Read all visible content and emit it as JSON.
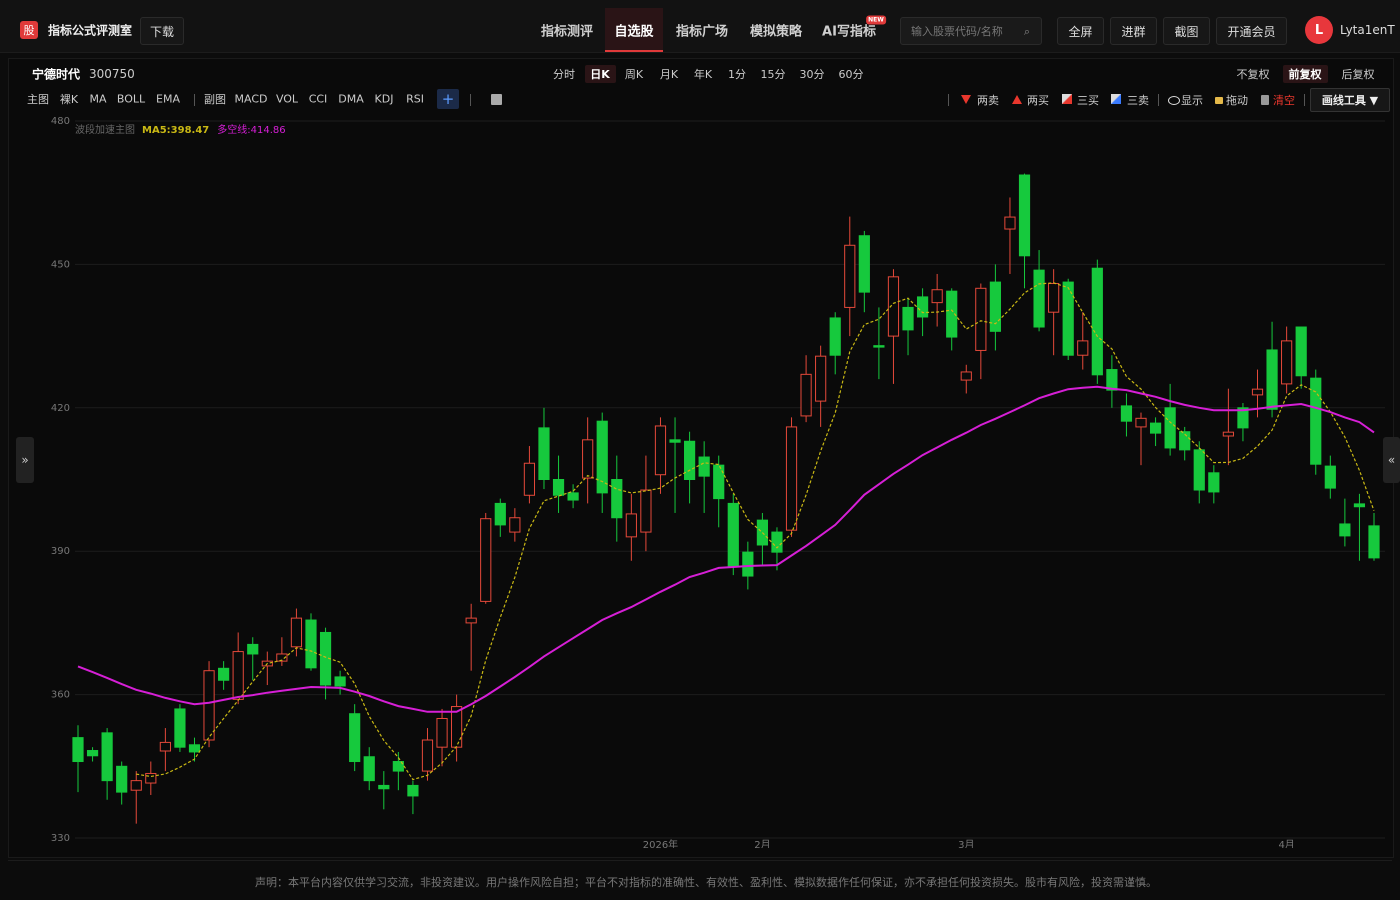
{
  "header": {
    "logo": "股",
    "title": "指标公式评测室",
    "download": "下载",
    "nav": [
      "指标测评",
      "自选股",
      "指标广场",
      "模拟策略",
      "AI写指标"
    ],
    "badge": "NEW",
    "search_placeholder": "输入股票代码/名称",
    "buttons": [
      "全屏",
      "进群",
      "截图",
      "开通会员"
    ],
    "avatar": "L",
    "user": "Lyta1enT"
  },
  "stock": {
    "name": "宁德时代",
    "code": "300750"
  },
  "periods": [
    "分时",
    "日K",
    "周K",
    "月K",
    "年K",
    "1分",
    "15分",
    "30分",
    "60分"
  ],
  "adjust": [
    "不复权",
    "前复权",
    "后复权"
  ],
  "toolbar": {
    "main_label": "主图",
    "main": [
      "裸K",
      "MA",
      "BOLL",
      "EMA"
    ],
    "sub_label": "副图",
    "sub": [
      "MACD",
      "VOL",
      "CCI",
      "DMA",
      "KDJ",
      "RSI"
    ],
    "add": "+"
  },
  "signals": [
    "两卖",
    "两买",
    "三买",
    "三卖"
  ],
  "tools": [
    "显示",
    "拖动",
    "清空"
  ],
  "draw_tool": "画线工具 ▼",
  "side_left": "»",
  "side_right": "«",
  "footer": "声明：本平台内容仅供学习交流，非投资建议。用户操作风险自担；平台不对指标的准确性、有效性、盈利性、模拟数据作任何保证，亦不承担任何投资损失。股市有风险，投资需谨慎。",
  "chart_data": {
    "type": "candlestick",
    "indicator_label": "波段加速主图",
    "categories": [
      null,
      null,
      null,
      null,
      null,
      null,
      null,
      null,
      null,
      null,
      null,
      null,
      null,
      null,
      null,
      null,
      null,
      null,
      null,
      null,
      null,
      null,
      null,
      null,
      null,
      null,
      null,
      null,
      null,
      null,
      null,
      null,
      null,
      null,
      null,
      null,
      null,
      null,
      null,
      null,
      "2026年",
      null,
      null,
      null,
      null,
      null,
      null,
      "2月",
      null,
      null,
      null,
      null,
      null,
      null,
      null,
      null,
      null,
      null,
      null,
      null,
      null,
      "3月",
      null,
      null,
      null,
      null,
      null,
      null,
      null,
      null,
      null,
      null,
      null,
      null,
      null,
      null,
      null,
      null,
      null,
      null,
      null,
      null,
      null,
      "4月",
      null,
      null,
      null,
      null,
      null,
      null
    ],
    "open": [
      351,
      348.3,
      352,
      345,
      340,
      341.5,
      348.2,
      357,
      349.5,
      350.5,
      365.5,
      359,
      370.5,
      366,
      367,
      370,
      375.6,
      373,
      363.7,
      356,
      347,
      341,
      346,
      341,
      344,
      349,
      349,
      375,
      379.5,
      400,
      394,
      401.7,
      415.8,
      405,
      402.2,
      405.3,
      417.2,
      405,
      393,
      394,
      406,
      413.3,
      413,
      409.7,
      408,
      400,
      389.8,
      396.5,
      394,
      394.4,
      418.3,
      421.4,
      438.8,
      441,
      456,
      433,
      435,
      441,
      443.2,
      442,
      444.4,
      425.8,
      432,
      446.3,
      457.4,
      468.7,
      448.8,
      440,
      446.3,
      431,
      449.2,
      428,
      420.4,
      416,
      416.8,
      420,
      415,
      411.2,
      406.4,
      414.1,
      420,
      422.7,
      432.1,
      425,
      436.9,
      426.2,
      407.8,
      395.7,
      399.9,
      395.3
    ],
    "high": [
      353.6,
      349,
      353,
      346,
      344,
      346,
      353,
      358,
      351,
      367,
      367,
      373,
      372,
      369,
      372,
      378,
      377,
      374,
      365,
      358,
      349,
      344,
      348,
      342,
      353,
      357,
      360,
      379,
      398,
      401,
      399,
      412,
      420,
      410,
      404,
      418,
      419,
      410,
      402,
      410,
      418,
      418,
      415,
      413,
      410,
      402,
      392,
      398,
      395,
      418,
      431,
      433,
      440,
      460,
      457,
      441,
      449,
      443,
      445,
      448,
      445,
      429,
      446,
      450,
      464,
      469,
      453,
      449,
      447,
      440,
      451,
      431,
      423,
      419,
      418,
      425,
      416,
      413,
      408,
      424,
      421,
      428,
      438,
      437,
      437,
      428,
      410,
      401,
      402,
      398
    ],
    "low": [
      339.6,
      346,
      338,
      337,
      333,
      339,
      344,
      348,
      346,
      349,
      361,
      358,
      363,
      362,
      366,
      368,
      365,
      359,
      360,
      344,
      340,
      336,
      340,
      335,
      342,
      345,
      346,
      365,
      379,
      393,
      392,
      400,
      403,
      398,
      399,
      400,
      398,
      392,
      388,
      390,
      402,
      398,
      400,
      398,
      395,
      385,
      382,
      387,
      386,
      393,
      417,
      416,
      427,
      435,
      440,
      426,
      425,
      431,
      435,
      437,
      432,
      423,
      426,
      432,
      448,
      445,
      436,
      431,
      430,
      428,
      425,
      420,
      414,
      408,
      412,
      410,
      409,
      400,
      400,
      408,
      413,
      418,
      418,
      423,
      424,
      406,
      401,
      391,
      388,
      388
    ],
    "close": [
      346,
      347.2,
      342,
      339.6,
      342,
      343.5,
      350,
      349,
      348,
      365,
      363,
      369,
      368.5,
      367,
      368.5,
      376,
      365.6,
      362,
      361.8,
      346,
      342,
      340.3,
      344,
      338.8,
      350.5,
      355,
      357.5,
      376,
      396.8,
      395.5,
      397,
      408.4,
      405,
      401.7,
      400.7,
      413.3,
      402.2,
      397,
      397.8,
      402.8,
      416.2,
      412.8,
      405,
      405.7,
      401,
      386.7,
      384.8,
      391.3,
      389.8,
      416,
      427,
      430.8,
      431,
      454,
      444.2,
      432.7,
      447.4,
      436.3,
      439,
      444.7,
      434.8,
      427.5,
      445,
      436,
      459.9,
      451.8,
      436.9,
      446,
      431,
      434,
      426.9,
      423.7,
      417.2,
      417.8,
      414.7,
      411.6,
      411.2,
      402.8,
      402.4,
      414.9,
      415.8,
      423.9,
      419.7,
      434,
      426.7,
      408.2,
      403.2,
      393.2,
      399.3,
      388.6
    ],
    "up_color": "#e5493a",
    "down_color": "#16c93d",
    "series": [
      {
        "name": "MA5:398.47",
        "color": "#c9b814",
        "dashed": true,
        "values": [
          null,
          null,
          null,
          null,
          343.36,
          342.86,
          343.42,
          344.82,
          346.5,
          351.1,
          355,
          358.8,
          362.7,
          366.5,
          367.2,
          369.8,
          369.12,
          367.82,
          366.78,
          362.28,
          355.48,
          350.42,
          346.82,
          342.22,
          343.12,
          345.72,
          349.16,
          355.56,
          367.16,
          376.16,
          384.56,
          394.74,
          400.54,
          401.52,
          402.56,
          405.82,
          404.58,
          402.98,
          402.2,
          402.62,
          403.2,
          405.32,
          406.92,
          408.5,
          408.14,
          402.24,
          396.64,
          393.9,
          390.72,
          393.72,
          401.78,
          410.98,
          418.92,
          431.76,
          437.4,
          438.54,
          441.86,
          442.92,
          439.92,
          440.02,
          440.44,
          436.46,
          438.2,
          437.6,
          440.64,
          444.04,
          445.92,
          446.12,
          445.12,
          439.94,
          434.96,
          432.32,
          426.56,
          423.92,
          420.06,
          417,
          414.5,
          411.62,
          408.54,
          408.58,
          409.42,
          411.96,
          415.34,
          422.46,
          424.82,
          423.3,
          419.16,
          413.86,
          406.92,
          398.47
        ]
      },
      {
        "name": "多空线:414.86",
        "color": "#d61fd6",
        "dashed": false,
        "values": [
          365.9,
          364.7,
          363.5,
          362.2,
          361,
          360.2,
          359.3,
          358.6,
          358,
          358.3,
          358.9,
          359.5,
          359.9,
          360.4,
          360.8,
          361.2,
          361.6,
          361.5,
          361.4,
          360.6,
          359.7,
          358.6,
          357.6,
          357,
          356.4,
          356.4,
          356.4,
          358,
          359.7,
          361.7,
          363.7,
          365.8,
          368,
          369.9,
          371.8,
          373.7,
          375.6,
          377,
          378.3,
          379.9,
          381.5,
          383,
          384.6,
          385.5,
          386.5,
          386.7,
          386.9,
          387,
          387.1,
          389.1,
          391.1,
          393.3,
          395.5,
          398.6,
          401.8,
          404,
          406.2,
          408.1,
          410.1,
          411.7,
          413.3,
          414.8,
          416.4,
          417.7,
          419.1,
          420.5,
          422,
          423,
          423.9,
          424.2,
          424.4,
          424,
          423.7,
          423,
          422.3,
          421.4,
          420.6,
          420,
          419.5,
          419.5,
          419.5,
          419.8,
          420.2,
          420.5,
          420.8,
          420,
          419.1,
          418,
          417,
          414.86
        ]
      }
    ],
    "ylim": [
      330,
      480
    ],
    "yticks": [
      330,
      360,
      390,
      420,
      450,
      480
    ],
    "grid": true
  }
}
